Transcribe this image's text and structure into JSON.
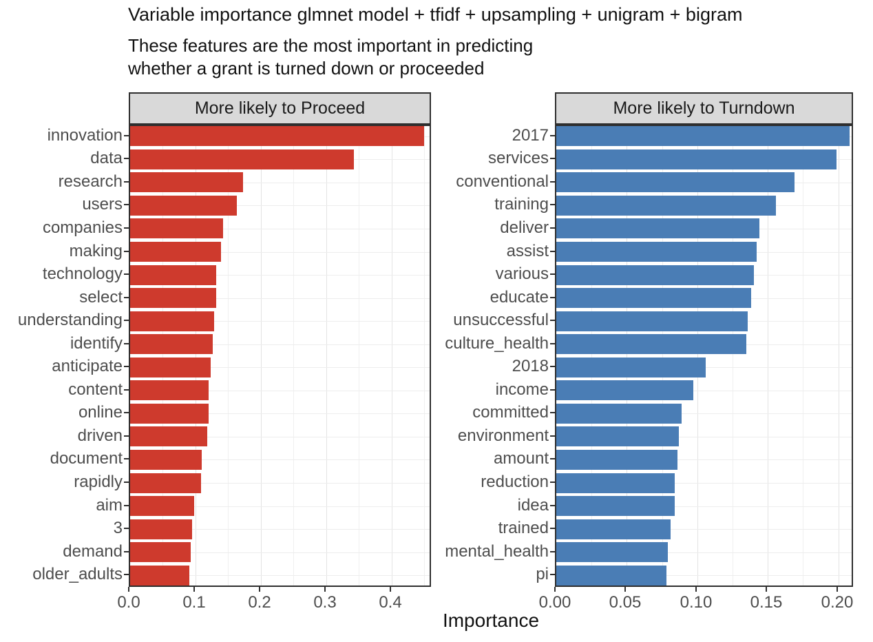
{
  "chart_data": {
    "type": "bar",
    "orientation": "horizontal",
    "title": "Variable importance glmnet model + tfidf + upsampling + unigram + bigram",
    "subtitle": "These features are the most important in predicting\nwhether a grant is turned down or proceeded",
    "xlabel": "Importance",
    "ylabel": "",
    "grid": "on",
    "legend": "none",
    "facets": [
      {
        "label": "More likely to Proceed",
        "color": "#CE3A2D",
        "xlim": [
          0,
          0.458
        ],
        "ticks": [
          0.0,
          0.1,
          0.2,
          0.3,
          0.4
        ],
        "tick_labels": [
          "0.0",
          "0.1",
          "0.2",
          "0.3",
          "0.4"
        ],
        "minor_step": 0.05,
        "categories": [
          "innovation",
          "data",
          "research",
          "users",
          "companies",
          "making",
          "technology",
          "select",
          "understanding",
          "identify",
          "anticipate",
          "content",
          "online",
          "driven",
          "document",
          "rapidly",
          "aim",
          "3",
          "demand",
          "older_adults"
        ],
        "values": [
          0.45,
          0.342,
          0.173,
          0.163,
          0.142,
          0.139,
          0.132,
          0.132,
          0.128,
          0.126,
          0.123,
          0.12,
          0.12,
          0.118,
          0.11,
          0.108,
          0.098,
          0.095,
          0.093,
          0.091
        ]
      },
      {
        "label": "More likely to Turndown",
        "color": "#4A7DB5",
        "xlim": [
          0,
          0.2095
        ],
        "ticks": [
          0.0,
          0.05,
          0.1,
          0.15,
          0.2
        ],
        "tick_labels": [
          "0.00",
          "0.05",
          "0.10",
          "0.15",
          "0.20"
        ],
        "minor_step": 0.025,
        "categories": [
          "2017",
          "services",
          "conventional",
          "training",
          "deliver",
          "assist",
          "various",
          "educate",
          "unsuccessful",
          "culture_health",
          "2018",
          "income",
          "committed",
          "environment",
          "amount",
          "reduction",
          "idea",
          "trained",
          "mental_health",
          "pi"
        ],
        "values": [
          0.208,
          0.199,
          0.169,
          0.156,
          0.144,
          0.142,
          0.14,
          0.138,
          0.136,
          0.135,
          0.106,
          0.097,
          0.089,
          0.087,
          0.086,
          0.084,
          0.084,
          0.081,
          0.079,
          0.078
        ]
      }
    ],
    "colors": {
      "proceed_bar": "#CE3A2D",
      "turndown_bar": "#4A7DB5",
      "strip_background": "#D9D9D9",
      "panel_border": "#2e2e2e",
      "grid_major": "#e3e3e3",
      "grid_minor": "#f0f0f0",
      "axis_text": "#4d4d4d",
      "title_text": "#111111"
    }
  }
}
